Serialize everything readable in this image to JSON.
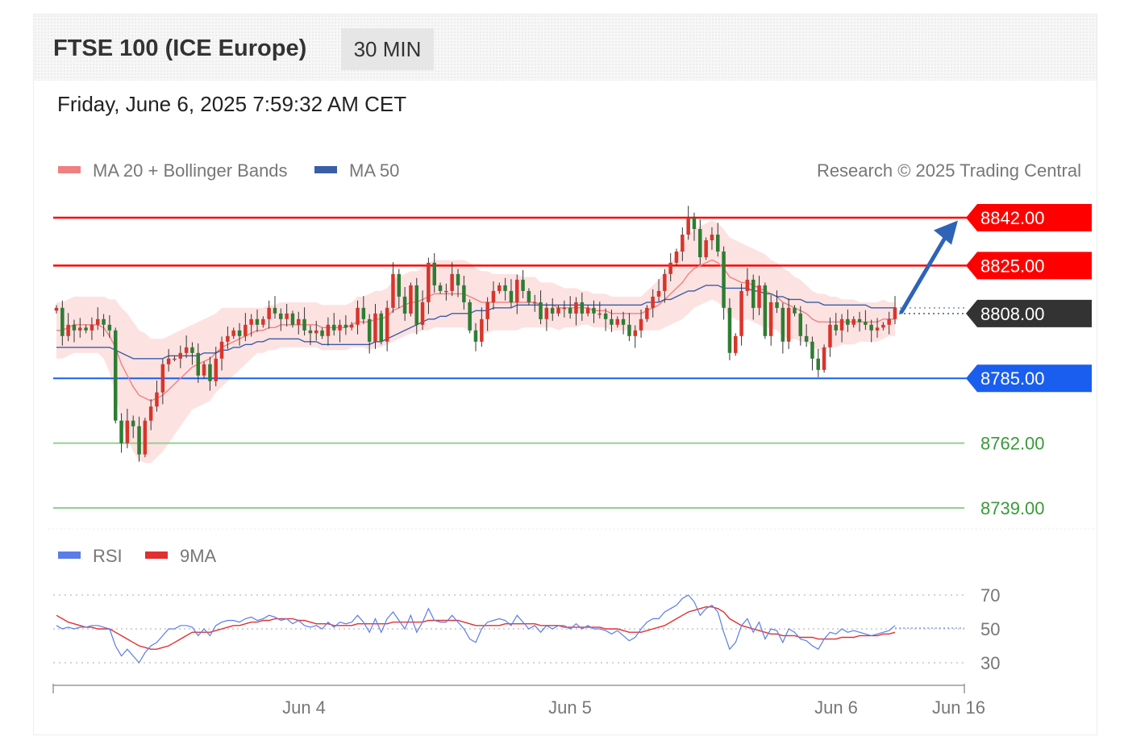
{
  "header": {
    "title": "FTSE 100 (ICE Europe)",
    "interval": "30 MIN",
    "datetime": "Friday, June 6, 2025 7:59:32 AM CET"
  },
  "colors": {
    "resistance": "#ff0000",
    "support": "#1a5ef0",
    "target_green": "#8fd18f",
    "label_green": "#3a9a3a",
    "current": "#333333",
    "bull": "#d9352b",
    "bear": "#2e7d32",
    "ma20": "#f08080",
    "bollinger_fill": "#fde2e2",
    "ma50": "#3a5da8",
    "arrow": "#2e63b8",
    "rsi": "#5b7de8",
    "rsi_ma": "#e03030"
  },
  "chart_data": [
    {
      "type": "candlestick",
      "legend": [
        {
          "label": "MA 20 + Bollinger Bands",
          "color": "#f08080"
        },
        {
          "label": "MA 50",
          "color": "#3a5da8"
        }
      ],
      "credit": "Research © 2025 Trading Central",
      "levels": [
        {
          "value": 8842.0,
          "label": "8842.00",
          "kind": "resistance"
        },
        {
          "value": 8825.0,
          "label": "8825.00",
          "kind": "resistance"
        },
        {
          "value": 8808.0,
          "label": "8808.00",
          "kind": "current"
        },
        {
          "value": 8785.0,
          "label": "8785.00",
          "kind": "support"
        },
        {
          "value": 8762.0,
          "label": "8762.00",
          "kind": "target"
        },
        {
          "value": 8739.0,
          "label": "8739.00",
          "kind": "target"
        }
      ],
      "ylim": [
        8735,
        8850
      ],
      "x_ticks": [
        "Jun 4",
        "Jun 5",
        "Jun 6",
        "Jun 16"
      ],
      "arrow": {
        "from": 8808.0,
        "to": 8841.0
      },
      "closes": [
        8810,
        8800,
        8804,
        8802,
        8803,
        8802,
        8804,
        8806,
        8804,
        8802,
        8770,
        8762,
        8770,
        8768,
        8758,
        8770,
        8775,
        8780,
        8790,
        8792,
        8792,
        8794,
        8796,
        8794,
        8786,
        8790,
        8784,
        8792,
        8798,
        8800,
        8802,
        8800,
        8804,
        8806,
        8804,
        8806,
        8810,
        8808,
        8806,
        8808,
        8804,
        8806,
        8802,
        8801,
        8802,
        8800,
        8804,
        8802,
        8804,
        8803,
        8804,
        8810,
        8806,
        8798,
        8808,
        8798,
        8810,
        8822,
        8814,
        8808,
        8818,
        8804,
        8812,
        8826,
        8818,
        8816,
        8816,
        8822,
        8818,
        8812,
        8802,
        8798,
        8806,
        8812,
        8816,
        8818,
        8816,
        8812,
        8820,
        8816,
        8812,
        8812,
        8806,
        8810,
        8808,
        8810,
        8810,
        8808,
        8812,
        8808,
        8810,
        8808,
        8808,
        8806,
        8804,
        8806,
        8804,
        8800,
        8802,
        8806,
        8810,
        8814,
        8816,
        8822,
        8826,
        8830,
        8836,
        8842,
        8838,
        8828,
        8834,
        8836,
        8830,
        8810,
        8794,
        8800,
        8816,
        8820,
        8810,
        8818,
        8800,
        8812,
        8810,
        8798,
        8810,
        8808,
        8800,
        8798,
        8792,
        8788,
        8796,
        8804,
        8802,
        8806,
        8804,
        8806,
        8805,
        8804,
        8802,
        8803,
        8804,
        8806,
        8810
      ],
      "ma20": [
        8802,
        8802,
        8803,
        8804,
        8804,
        8804,
        8804,
        8804,
        8803,
        8800,
        8796,
        8790,
        8786,
        8782,
        8779,
        8778,
        8777,
        8778,
        8779,
        8781,
        8783,
        8785,
        8787,
        8789,
        8790,
        8791,
        8792,
        8794,
        8796,
        8797,
        8798,
        8799,
        8800,
        8801,
        8802,
        8802,
        8803,
        8803,
        8804,
        8804,
        8804,
        8804,
        8804,
        8804,
        8804,
        8803,
        8803,
        8803,
        8803,
        8803,
        8804,
        8805,
        8805,
        8805,
        8806,
        8806,
        8807,
        8809,
        8810,
        8811,
        8812,
        8812,
        8813,
        8814,
        8815,
        8815,
        8815,
        8815,
        8815,
        8815,
        8814,
        8813,
        8812,
        8812,
        8812,
        8812,
        8812,
        8812,
        8812,
        8812,
        8812,
        8812,
        8811,
        8811,
        8811,
        8810,
        8810,
        8810,
        8810,
        8810,
        8810,
        8809,
        8809,
        8809,
        8808,
        8808,
        8808,
        8808,
        8808,
        8808,
        8809,
        8810,
        8811,
        8813,
        8815,
        8817,
        8819,
        8822,
        8824,
        8825,
        8826,
        8827,
        8826,
        8824,
        8821,
        8820,
        8819,
        8819,
        8818,
        8817,
        8816,
        8815,
        8814,
        8812,
        8811,
        8810,
        8809,
        8808,
        8806,
        8805,
        8805,
        8805,
        8805,
        8805,
        8805,
        8805,
        8805,
        8805,
        8805,
        8805,
        8806,
        8806,
        8806
      ],
      "ma50": [
        8796,
        8796,
        8796,
        8796,
        8796,
        8796,
        8796,
        8796,
        8796,
        8796,
        8795,
        8794,
        8793,
        8792,
        8792,
        8792,
        8792,
        8792,
        8792,
        8793,
        8793,
        8793,
        8793,
        8793,
        8793,
        8794,
        8794,
        8794,
        8795,
        8795,
        8796,
        8796,
        8797,
        8797,
        8798,
        8798,
        8799,
        8799,
        8799,
        8799,
        8799,
        8799,
        8798,
        8798,
        8798,
        8797,
        8797,
        8797,
        8797,
        8797,
        8797,
        8797,
        8797,
        8797,
        8798,
        8798,
        8799,
        8800,
        8801,
        8802,
        8803,
        8804,
        8805,
        8806,
        8806,
        8807,
        8807,
        8808,
        8808,
        8808,
        8808,
        8809,
        8809,
        8809,
        8810,
        8810,
        8810,
        8810,
        8811,
        8811,
        8811,
        8811,
        8811,
        8811,
        8811,
        8811,
        8811,
        8811,
        8811,
        8811,
        8811,
        8811,
        8811,
        8811,
        8811,
        8811,
        8811,
        8811,
        8811,
        8811,
        8812,
        8812,
        8812,
        8813,
        8813,
        8814,
        8815,
        8816,
        8816,
        8817,
        8818,
        8818,
        8818,
        8817,
        8817,
        8817,
        8817,
        8817,
        8816,
        8816,
        8815,
        8815,
        8814,
        8814,
        8813,
        8813,
        8813,
        8812,
        8812,
        8812,
        8811,
        8811,
        8811,
        8811,
        8811,
        8811,
        8811,
        8811,
        8810,
        8810,
        8810,
        8810,
        8810
      ],
      "band_width": [
        10,
        10,
        10,
        10,
        10,
        10,
        10,
        10,
        11,
        13,
        17,
        20,
        22,
        23,
        23,
        23,
        22,
        21,
        20,
        19,
        18,
        17,
        16,
        15,
        15,
        15,
        15,
        14,
        14,
        13,
        12,
        11,
        10,
        9,
        8,
        8,
        8,
        8,
        8,
        8,
        8,
        8,
        8,
        8,
        8,
        8,
        8,
        8,
        8,
        8,
        8,
        9,
        9,
        10,
        10,
        10,
        10,
        11,
        11,
        11,
        11,
        11,
        11,
        12,
        12,
        12,
        12,
        12,
        12,
        12,
        12,
        11,
        11,
        11,
        10,
        10,
        10,
        10,
        10,
        9,
        9,
        9,
        8,
        8,
        8,
        8,
        7,
        7,
        7,
        6,
        6,
        6,
        6,
        6,
        6,
        6,
        6,
        6,
        6,
        6,
        7,
        8,
        9,
        10,
        11,
        12,
        13,
        14,
        14,
        14,
        14,
        14,
        14,
        14,
        14,
        14,
        14,
        13,
        13,
        13,
        13,
        12,
        12,
        12,
        12,
        11,
        11,
        10,
        10,
        10,
        10,
        9,
        9,
        8,
        8,
        8,
        7,
        7,
        7,
        7,
        7,
        6,
        6
      ]
    },
    {
      "type": "line",
      "legend": [
        {
          "label": "RSI",
          "color": "#5b7de8"
        },
        {
          "label": "9MA",
          "color": "#e03030"
        }
      ],
      "ylim": [
        20,
        80
      ],
      "levels": [
        {
          "value": 70,
          "label": "70"
        },
        {
          "value": 50,
          "label": "50"
        },
        {
          "value": 30,
          "label": "30"
        }
      ],
      "rsi": [
        52,
        50,
        51,
        50,
        51,
        51,
        52,
        52,
        51,
        50,
        40,
        34,
        38,
        34,
        30,
        36,
        40,
        42,
        46,
        50,
        50,
        52,
        52,
        51,
        46,
        50,
        46,
        52,
        54,
        55,
        55,
        54,
        56,
        57,
        55,
        56,
        58,
        57,
        55,
        56,
        53,
        55,
        52,
        51,
        52,
        50,
        54,
        51,
        54,
        53,
        54,
        58,
        54,
        48,
        56,
        48,
        56,
        60,
        55,
        50,
        58,
        48,
        54,
        62,
        55,
        54,
        54,
        58,
        54,
        50,
        44,
        42,
        50,
        54,
        55,
        56,
        55,
        52,
        58,
        54,
        50,
        52,
        48,
        52,
        50,
        52,
        52,
        50,
        53,
        50,
        52,
        50,
        50,
        49,
        47,
        49,
        46,
        43,
        45,
        50,
        54,
        56,
        56,
        60,
        62,
        64,
        68,
        70,
        66,
        58,
        62,
        64,
        60,
        48,
        38,
        42,
        52,
        56,
        48,
        54,
        44,
        50,
        49,
        42,
        50,
        48,
        44,
        43,
        40,
        38,
        44,
        48,
        47,
        50,
        48,
        49,
        48,
        47,
        46,
        47,
        48,
        49,
        52
      ],
      "rsi_ma": [
        58,
        56,
        54,
        53,
        52,
        51,
        51,
        50,
        50,
        50,
        48,
        46,
        44,
        42,
        40,
        39,
        38,
        38,
        39,
        40,
        42,
        44,
        46,
        48,
        48,
        48,
        48,
        49,
        50,
        51,
        52,
        52,
        53,
        54,
        54,
        55,
        55,
        56,
        56,
        56,
        56,
        55,
        55,
        54,
        53,
        53,
        53,
        52,
        52,
        52,
        52,
        53,
        53,
        53,
        53,
        53,
        53,
        54,
        54,
        54,
        54,
        54,
        54,
        55,
        55,
        55,
        55,
        55,
        55,
        54,
        53,
        52,
        52,
        52,
        52,
        52,
        53,
        53,
        53,
        53,
        53,
        53,
        52,
        52,
        52,
        52,
        51,
        51,
        51,
        51,
        51,
        51,
        51,
        50,
        50,
        50,
        49,
        48,
        48,
        48,
        49,
        50,
        51,
        52,
        54,
        56,
        58,
        60,
        61,
        62,
        63,
        63,
        62,
        60,
        56,
        54,
        52,
        51,
        50,
        49,
        48,
        47,
        47,
        46,
        46,
        46,
        45,
        45,
        45,
        44,
        44,
        44,
        44,
        45,
        45,
        45,
        46,
        46,
        46,
        46,
        47,
        47,
        48
      ]
    }
  ]
}
